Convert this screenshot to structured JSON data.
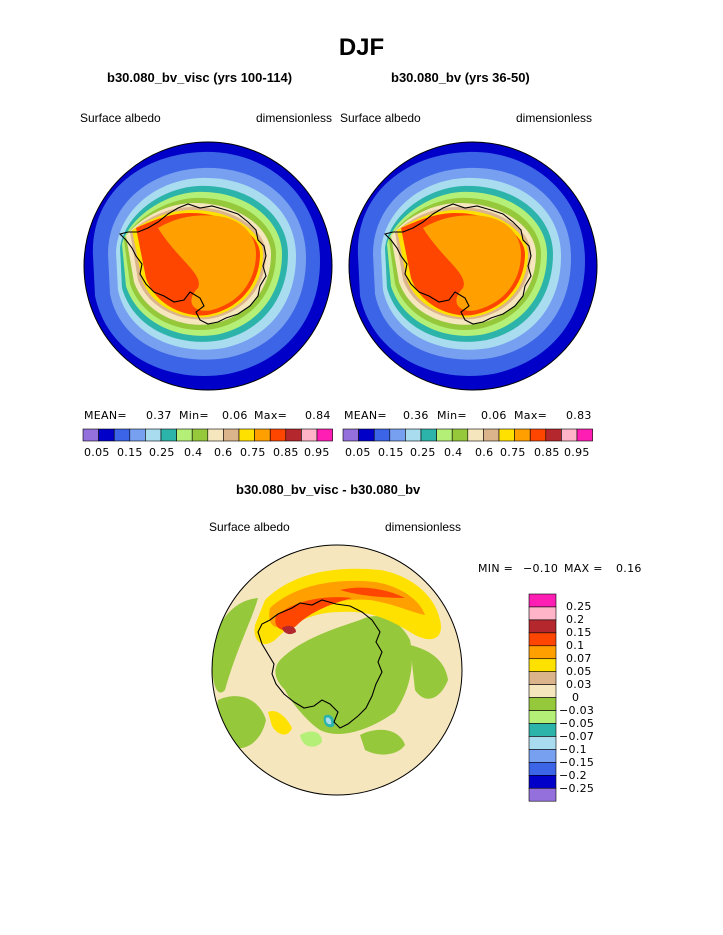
{
  "season": "DJF",
  "panels": [
    {
      "case_title": "b30.080_bv_visc (yrs 100-114)",
      "variable": "Surface albedo",
      "units": "dimensionless",
      "stats": {
        "mean_label": "MEAN=",
        "mean": "0.37",
        "min_label": "Min=",
        "min": "0.06",
        "max_label": "Max=",
        "max": "0.84"
      }
    },
    {
      "case_title": "b30.080_bv (yrs 36-50)",
      "variable": "Surface albedo",
      "units": "dimensionless",
      "stats": {
        "mean_label": "MEAN=",
        "mean": "0.36",
        "min_label": "Min=",
        "min": "0.06",
        "max_label": "Max=",
        "max": "0.83"
      }
    }
  ],
  "colorbar": {
    "colors": [
      "#9370db",
      "#0000c8",
      "#3c64e6",
      "#78a0f0",
      "#aadcf0",
      "#2db4aa",
      "#b4f078",
      "#96c83c",
      "#f5e6be",
      "#dcb48c",
      "#ffe100",
      "#ffa000",
      "#ff4600",
      "#b4282d",
      "#ffb4c8",
      "#ff1eb4"
    ],
    "labels": [
      "0.05",
      "0.15",
      "0.25",
      "0.4",
      "0.6",
      "0.75",
      "0.85",
      "0.95"
    ]
  },
  "difference": {
    "title": "b30.080_bv_visc - b30.080_bv",
    "variable": "Surface albedo",
    "units": "dimensionless",
    "min_label": "MIN =",
    "min": "−0.10",
    "max_label": "MAX =",
    "max": "0.16",
    "legend": {
      "colors": [
        "#ff1eb4",
        "#ffb4c8",
        "#b4282d",
        "#ff4600",
        "#ffa000",
        "#ffe100",
        "#dcb48c",
        "#f5e6be",
        "#96c83c",
        "#b4f078",
        "#2db4aa",
        "#aadcf0",
        "#78a0f0",
        "#3c64e6",
        "#0000c8",
        "#9370db"
      ],
      "labels": [
        "0.25",
        "0.2",
        "0.15",
        "0.1",
        "0.07",
        "0.05",
        "0.03",
        "0",
        "−0.03",
        "−0.05",
        "−0.07",
        "−0.1",
        "−0.15",
        "−0.2",
        "−0.25"
      ]
    }
  }
}
